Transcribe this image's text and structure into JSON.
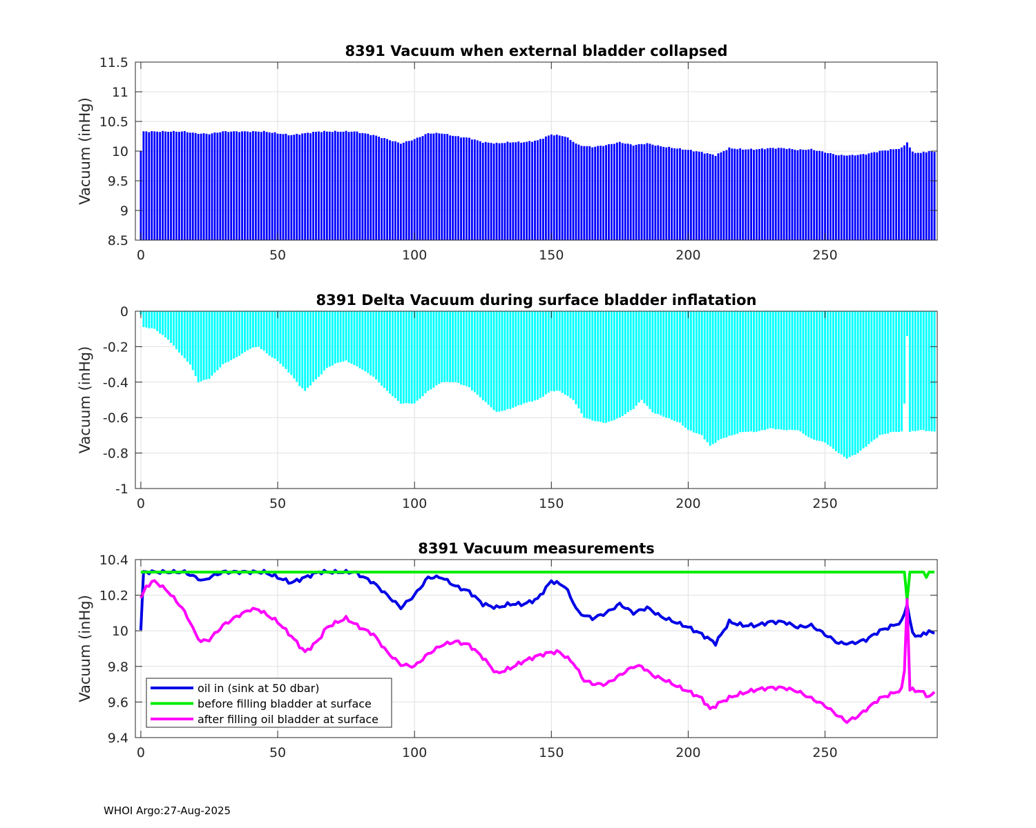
{
  "footer": "WHOI Argo:27-Aug-2025",
  "colors": {
    "bar1": "#0000ff",
    "bar2": "#00ffff",
    "oil_in": "#0000e6",
    "before": "#00ee00",
    "after": "#ff00ff",
    "grid": "#e0e0e0",
    "axis": "#262626"
  },
  "chart_data": [
    {
      "type": "bar",
      "title": "8391 Vacuum when external bladder collapsed",
      "xlabel": "",
      "ylabel": "Vacuum (inHg)",
      "xlim": [
        -2,
        291
      ],
      "ylim": [
        8.5,
        11.5
      ],
      "xticks": [
        0,
        50,
        100,
        150,
        200,
        250
      ],
      "yticks": [
        8.5,
        9,
        9.5,
        10,
        10.5,
        11,
        11.5
      ],
      "ytick_labels": [
        "8.5",
        "9",
        "9.5",
        "10",
        "10.5",
        "11",
        "11.5"
      ],
      "grid": true,
      "keypoints": [
        [
          0,
          10.0
        ],
        [
          1,
          10.33
        ],
        [
          16,
          10.33
        ],
        [
          20,
          10.3
        ],
        [
          25,
          10.29
        ],
        [
          30,
          10.33
        ],
        [
          45,
          10.33
        ],
        [
          50,
          10.3
        ],
        [
          55,
          10.27
        ],
        [
          60,
          10.3
        ],
        [
          65,
          10.33
        ],
        [
          72,
          10.33
        ],
        [
          78,
          10.33
        ],
        [
          85,
          10.27
        ],
        [
          90,
          10.2
        ],
        [
          95,
          10.13
        ],
        [
          100,
          10.2
        ],
        [
          105,
          10.3
        ],
        [
          110,
          10.3
        ],
        [
          115,
          10.25
        ],
        [
          120,
          10.22
        ],
        [
          125,
          10.15
        ],
        [
          130,
          10.13
        ],
        [
          135,
          10.15
        ],
        [
          140,
          10.15
        ],
        [
          145,
          10.18
        ],
        [
          150,
          10.28
        ],
        [
          155,
          10.25
        ],
        [
          160,
          10.1
        ],
        [
          165,
          10.07
        ],
        [
          170,
          10.1
        ],
        [
          175,
          10.15
        ],
        [
          180,
          10.1
        ],
        [
          185,
          10.13
        ],
        [
          190,
          10.08
        ],
        [
          195,
          10.05
        ],
        [
          200,
          10.02
        ],
        [
          205,
          9.98
        ],
        [
          210,
          9.93
        ],
        [
          215,
          10.05
        ],
        [
          220,
          10.03
        ],
        [
          225,
          10.03
        ],
        [
          230,
          10.05
        ],
        [
          235,
          10.05
        ],
        [
          240,
          10.02
        ],
        [
          245,
          10.03
        ],
        [
          250,
          9.98
        ],
        [
          255,
          9.93
        ],
        [
          260,
          9.93
        ],
        [
          265,
          9.95
        ],
        [
          270,
          10.0
        ],
        [
          275,
          10.03
        ],
        [
          278,
          10.05
        ],
        [
          280,
          10.15
        ],
        [
          282,
          9.98
        ],
        [
          285,
          9.97
        ],
        [
          288,
          10.0
        ],
        [
          290,
          9.98
        ]
      ],
      "n": 291
    },
    {
      "type": "bar",
      "title": "8391 Delta Vacuum during surface bladder inflatation",
      "xlabel": "",
      "ylabel": "Vacuum (inHg)",
      "xlim": [
        -2,
        291
      ],
      "ylim": [
        -1,
        0
      ],
      "xticks": [
        0,
        50,
        100,
        150,
        200,
        250
      ],
      "yticks": [
        -1,
        -0.8,
        -0.6,
        -0.4,
        -0.2,
        0
      ],
      "ytick_labels": [
        "-1",
        "-0.8",
        "-0.6",
        "-0.4",
        "-0.2",
        "0"
      ],
      "grid": true,
      "keypoints": [
        [
          0,
          -0.02
        ],
        [
          1,
          -0.09
        ],
        [
          5,
          -0.1
        ],
        [
          10,
          -0.16
        ],
        [
          15,
          -0.25
        ],
        [
          18,
          -0.3
        ],
        [
          21,
          -0.4
        ],
        [
          25,
          -0.38
        ],
        [
          30,
          -0.3
        ],
        [
          35,
          -0.26
        ],
        [
          40,
          -0.21
        ],
        [
          43,
          -0.2
        ],
        [
          47,
          -0.25
        ],
        [
          50,
          -0.28
        ],
        [
          55,
          -0.36
        ],
        [
          58,
          -0.42
        ],
        [
          60,
          -0.45
        ],
        [
          63,
          -0.4
        ],
        [
          65,
          -0.37
        ],
        [
          68,
          -0.32
        ],
        [
          72,
          -0.29
        ],
        [
          75,
          -0.28
        ],
        [
          80,
          -0.32
        ],
        [
          85,
          -0.37
        ],
        [
          90,
          -0.45
        ],
        [
          95,
          -0.52
        ],
        [
          100,
          -0.52
        ],
        [
          105,
          -0.45
        ],
        [
          110,
          -0.4
        ],
        [
          115,
          -0.4
        ],
        [
          120,
          -0.43
        ],
        [
          125,
          -0.5
        ],
        [
          130,
          -0.57
        ],
        [
          135,
          -0.55
        ],
        [
          140,
          -0.52
        ],
        [
          145,
          -0.5
        ],
        [
          150,
          -0.45
        ],
        [
          153,
          -0.45
        ],
        [
          158,
          -0.5
        ],
        [
          162,
          -0.6
        ],
        [
          166,
          -0.62
        ],
        [
          170,
          -0.63
        ],
        [
          175,
          -0.6
        ],
        [
          180,
          -0.55
        ],
        [
          183,
          -0.5
        ],
        [
          187,
          -0.57
        ],
        [
          192,
          -0.6
        ],
        [
          197,
          -0.63
        ],
        [
          200,
          -0.67
        ],
        [
          205,
          -0.7
        ],
        [
          208,
          -0.76
        ],
        [
          212,
          -0.72
        ],
        [
          216,
          -0.7
        ],
        [
          220,
          -0.68
        ],
        [
          225,
          -0.68
        ],
        [
          230,
          -0.66
        ],
        [
          235,
          -0.67
        ],
        [
          240,
          -0.67
        ],
        [
          245,
          -0.72
        ],
        [
          250,
          -0.74
        ],
        [
          255,
          -0.8
        ],
        [
          258,
          -0.83
        ],
        [
          262,
          -0.8
        ],
        [
          266,
          -0.75
        ],
        [
          270,
          -0.7
        ],
        [
          275,
          -0.68
        ],
        [
          278,
          -0.68
        ],
        [
          279,
          -0.52
        ],
        [
          280,
          -0.14
        ],
        [
          281,
          -0.68
        ],
        [
          285,
          -0.67
        ],
        [
          290,
          -0.68
        ]
      ],
      "n": 291
    },
    {
      "type": "line",
      "title": "8391 Vacuum measurements",
      "xlabel": "",
      "ylabel": "Vacuum (inHg)",
      "xlim": [
        -2,
        291
      ],
      "ylim": [
        9.4,
        10.4
      ],
      "xticks": [
        0,
        50,
        100,
        150,
        200,
        250
      ],
      "yticks": [
        9.4,
        9.6,
        9.8,
        10.0,
        10.2,
        10.4
      ],
      "ytick_labels": [
        "9.4",
        "9.6",
        "9.8",
        "10",
        "10.2",
        "10.4"
      ],
      "grid": true,
      "legend_position": "bottom-left",
      "series": [
        {
          "name": "oil in (sink at 50 dbar)",
          "color": "#0000e6",
          "keypoints": [
            [
              0,
              10.0
            ],
            [
              1,
              10.33
            ],
            [
              16,
              10.33
            ],
            [
              20,
              10.3
            ],
            [
              23,
              10.28
            ],
            [
              25,
              10.3
            ],
            [
              30,
              10.33
            ],
            [
              45,
              10.33
            ],
            [
              50,
              10.3
            ],
            [
              55,
              10.27
            ],
            [
              60,
              10.3
            ],
            [
              65,
              10.33
            ],
            [
              72,
              10.33
            ],
            [
              78,
              10.33
            ],
            [
              85,
              10.27
            ],
            [
              90,
              10.2
            ],
            [
              95,
              10.13
            ],
            [
              100,
              10.2
            ],
            [
              105,
              10.3
            ],
            [
              110,
              10.3
            ],
            [
              115,
              10.25
            ],
            [
              120,
              10.22
            ],
            [
              125,
              10.15
            ],
            [
              130,
              10.13
            ],
            [
              135,
              10.15
            ],
            [
              140,
              10.15
            ],
            [
              145,
              10.18
            ],
            [
              150,
              10.28
            ],
            [
              155,
              10.25
            ],
            [
              160,
              10.1
            ],
            [
              165,
              10.07
            ],
            [
              170,
              10.1
            ],
            [
              175,
              10.15
            ],
            [
              180,
              10.1
            ],
            [
              185,
              10.13
            ],
            [
              190,
              10.08
            ],
            [
              195,
              10.05
            ],
            [
              200,
              10.02
            ],
            [
              205,
              9.98
            ],
            [
              210,
              9.93
            ],
            [
              215,
              10.05
            ],
            [
              220,
              10.03
            ],
            [
              225,
              10.03
            ],
            [
              230,
              10.05
            ],
            [
              235,
              10.05
            ],
            [
              240,
              10.02
            ],
            [
              245,
              10.03
            ],
            [
              250,
              9.98
            ],
            [
              255,
              9.93
            ],
            [
              260,
              9.93
            ],
            [
              265,
              9.95
            ],
            [
              270,
              10.0
            ],
            [
              275,
              10.03
            ],
            [
              278,
              10.05
            ],
            [
              280,
              10.15
            ],
            [
              282,
              9.98
            ],
            [
              285,
              9.97
            ],
            [
              288,
              10.0
            ],
            [
              290,
              9.98
            ]
          ]
        },
        {
          "name": "before filling bladder at surface",
          "color": "#00ee00",
          "keypoints": [
            [
              0,
              10.33
            ],
            [
              279,
              10.33
            ],
            [
              280,
              10.17
            ],
            [
              281,
              10.33
            ],
            [
              286,
              10.33
            ],
            [
              287,
              10.3
            ],
            [
              288,
              10.33
            ],
            [
              290,
              10.33
            ]
          ]
        },
        {
          "name": "after filling oil bladder at surface",
          "color": "#ff00ff",
          "keypoints": [
            [
              0,
              10.18
            ],
            [
              2,
              10.25
            ],
            [
              5,
              10.28
            ],
            [
              10,
              10.22
            ],
            [
              15,
              10.13
            ],
            [
              18,
              10.05
            ],
            [
              20,
              9.98
            ],
            [
              22,
              9.94
            ],
            [
              25,
              9.95
            ],
            [
              30,
              10.03
            ],
            [
              35,
              10.08
            ],
            [
              40,
              10.12
            ],
            [
              43,
              10.12
            ],
            [
              47,
              10.08
            ],
            [
              50,
              10.05
            ],
            [
              55,
              9.97
            ],
            [
              60,
              9.88
            ],
            [
              63,
              9.92
            ],
            [
              65,
              9.95
            ],
            [
              68,
              10.02
            ],
            [
              72,
              10.05
            ],
            [
              75,
              10.07
            ],
            [
              80,
              10.02
            ],
            [
              85,
              9.98
            ],
            [
              90,
              9.88
            ],
            [
              95,
              9.81
            ],
            [
              100,
              9.8
            ],
            [
              105,
              9.87
            ],
            [
              110,
              9.92
            ],
            [
              115,
              9.94
            ],
            [
              120,
              9.92
            ],
            [
              125,
              9.85
            ],
            [
              130,
              9.76
            ],
            [
              135,
              9.79
            ],
            [
              140,
              9.83
            ],
            [
              145,
              9.86
            ],
            [
              150,
              9.88
            ],
            [
              153,
              9.88
            ],
            [
              158,
              9.82
            ],
            [
              162,
              9.72
            ],
            [
              166,
              9.7
            ],
            [
              170,
              9.7
            ],
            [
              175,
              9.75
            ],
            [
              180,
              9.8
            ],
            [
              183,
              9.8
            ],
            [
              187,
              9.75
            ],
            [
              192,
              9.72
            ],
            [
              197,
              9.68
            ],
            [
              200,
              9.66
            ],
            [
              205,
              9.62
            ],
            [
              208,
              9.56
            ],
            [
              212,
              9.6
            ],
            [
              216,
              9.63
            ],
            [
              220,
              9.65
            ],
            [
              225,
              9.67
            ],
            [
              230,
              9.68
            ],
            [
              235,
              9.68
            ],
            [
              240,
              9.66
            ],
            [
              245,
              9.62
            ],
            [
              250,
              9.58
            ],
            [
              255,
              9.52
            ],
            [
              258,
              9.49
            ],
            [
              262,
              9.52
            ],
            [
              266,
              9.57
            ],
            [
              270,
              9.62
            ],
            [
              275,
              9.65
            ],
            [
              278,
              9.67
            ],
            [
              279,
              9.78
            ],
            [
              280,
              10.18
            ],
            [
              281,
              9.67
            ],
            [
              285,
              9.66
            ],
            [
              288,
              9.63
            ],
            [
              290,
              9.65
            ]
          ]
        }
      ]
    }
  ]
}
